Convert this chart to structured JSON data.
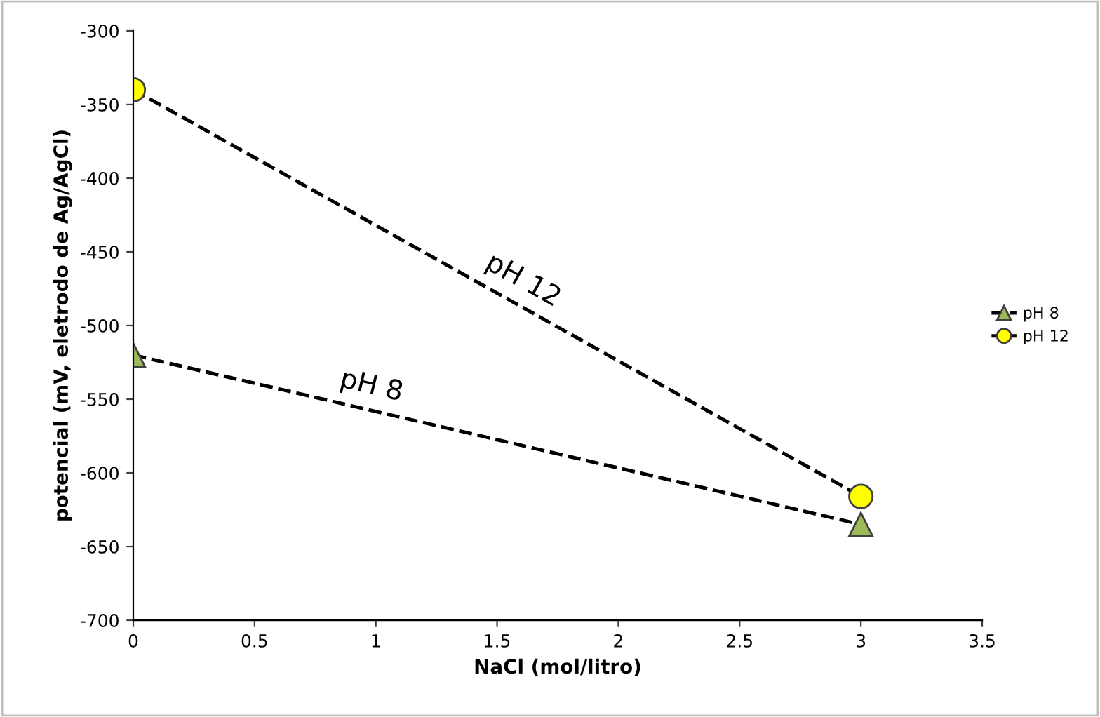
{
  "chart_data": {
    "type": "line",
    "xlabel": "NaCl (mol/litro)",
    "ylabel": "potencial (mV, eletrodo de Ag/AgCl)",
    "x": [
      0,
      3
    ],
    "series": [
      {
        "name": "pH 8",
        "color": "#9bbb59",
        "values": [
          -520,
          -635
        ],
        "marker": "triangle"
      },
      {
        "name": "pH 12",
        "color": "#ffff00",
        "values": [
          -340,
          -616
        ],
        "marker": "circle"
      }
    ],
    "line_style": "dashed",
    "xlim": [
      0,
      3.5
    ],
    "xticks": [
      0,
      0.5,
      1,
      1.5,
      2,
      2.5,
      3,
      3.5
    ],
    "ylim": [
      -700,
      -300
    ],
    "yticks": [
      -700,
      -650,
      -600,
      -550,
      -500,
      -450,
      -400,
      -350,
      -300
    ],
    "grid": false,
    "legend": "right"
  }
}
